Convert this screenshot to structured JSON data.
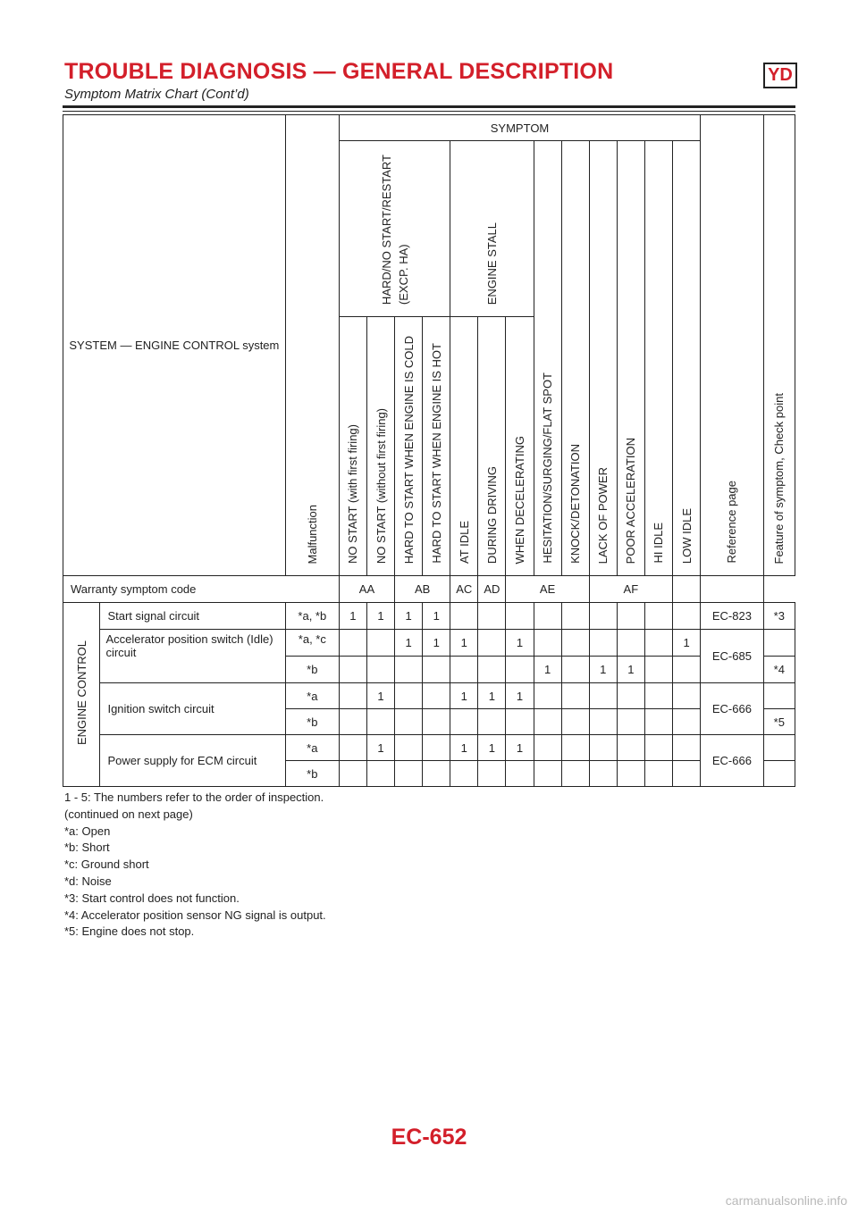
{
  "header": {
    "title": "TROUBLE DIAGNOSIS — GENERAL DESCRIPTION",
    "badge": "YD",
    "subtitle": "Symptom Matrix Chart (Cont’d)"
  },
  "table": {
    "system_label": "SYSTEM — ENGINE CONTROL system",
    "malfunction_label": "Malfunction",
    "symptom_label": "SYMPTOM",
    "group_hard_start": "HARD/NO START/RESTART\n(EXCP. HA)",
    "group_engine_stall": "ENGINE STALL",
    "reference_label": "Reference page",
    "feature_label": "Feature of symptom, Check point",
    "columns": [
      "NO START (with first firing)",
      "NO START (without first firing)",
      "HARD TO START WHEN ENGINE IS COLD",
      "HARD TO START WHEN ENGINE IS HOT",
      "AT IDLE",
      "DURING DRIVING",
      "WHEN DECELERATING",
      "HESITATION/SURGING/FLAT SPOT",
      "KNOCK/DETONATION",
      "LACK OF POWER",
      "POOR ACCELERATION",
      "HI IDLE",
      "LOW IDLE"
    ],
    "warranty_label": "Warranty symptom code",
    "warranty_codes": [
      "AA",
      "AB",
      "AC",
      "AD",
      "AE",
      "AF"
    ],
    "section_label": "ENGINE CONTROL",
    "rows": [
      {
        "item": "Start signal circuit",
        "malfunction": "*a, *b",
        "marks": [
          "1",
          "1",
          "1",
          "1",
          "",
          "",
          "",
          "",
          "",
          "",
          "",
          "",
          ""
        ],
        "reference": "EC-823",
        "feature": "*3"
      },
      {
        "item": "Accelerator position switch (Idle) circuit",
        "malfunction": "*a, *c",
        "marks": [
          "",
          "",
          "1",
          "1",
          "1",
          "",
          "1",
          "",
          "",
          "",
          "",
          "",
          "1"
        ],
        "reference": "EC-685",
        "feature": ""
      },
      {
        "item": "",
        "malfunction": "*b",
        "marks": [
          "",
          "",
          "",
          "",
          "",
          "",
          "",
          "1",
          "",
          "1",
          "1",
          "",
          ""
        ],
        "reference": "",
        "feature": "*4"
      },
      {
        "item": "Ignition switch circuit",
        "malfunction": "*a",
        "marks": [
          "",
          "1",
          "",
          "",
          "1",
          "1",
          "1",
          "",
          "",
          "",
          "",
          "",
          ""
        ],
        "reference": "EC-666",
        "feature": ""
      },
      {
        "item": "",
        "malfunction": "*b",
        "marks": [
          "",
          "",
          "",
          "",
          "",
          "",
          "",
          "",
          "",
          "",
          "",
          "",
          ""
        ],
        "reference": "",
        "feature": "*5"
      },
      {
        "item": "Power supply for ECM circuit",
        "malfunction": "*a",
        "marks": [
          "",
          "1",
          "",
          "",
          "1",
          "1",
          "1",
          "",
          "",
          "",
          "",
          "",
          ""
        ],
        "reference": "EC-666",
        "feature": ""
      },
      {
        "item": "",
        "malfunction": "*b",
        "marks": [
          "",
          "",
          "",
          "",
          "",
          "",
          "",
          "",
          "",
          "",
          "",
          "",
          ""
        ],
        "reference": "",
        "feature": ""
      }
    ]
  },
  "notes": [
    "1 - 5: The numbers refer to the order of inspection.",
    "(continued on next page)",
    "*a: Open",
    "*b: Short",
    "*c: Ground short",
    "*d: Noise",
    "*3: Start control does not function.",
    "*4: Accelerator position sensor NG signal is output.",
    "*5: Engine does not stop."
  ],
  "footer": {
    "page_code": "EC-652",
    "watermark": "carmanualsonline.info"
  }
}
